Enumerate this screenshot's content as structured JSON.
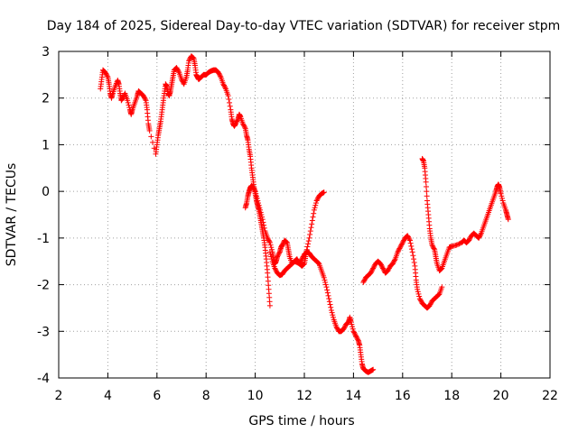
{
  "chart_data": {
    "type": "scatter",
    "title": "Day 184 of 2025, Sidereal Day-to-day VTEC variation (SDTVAR) for receiver stpm",
    "xlabel": "GPS time / hours",
    "ylabel": "SDTVAR / TECUs",
    "xlim": [
      2,
      22
    ],
    "ylim": [
      -4,
      3
    ],
    "xticks": [
      2,
      4,
      6,
      8,
      10,
      12,
      14,
      16,
      18,
      20,
      22
    ],
    "yticks": [
      -4,
      -3,
      -2,
      -1,
      0,
      1,
      2,
      3
    ],
    "grid": true,
    "marker": "plus",
    "color": "#ff0000",
    "segments": [
      {
        "points": [
          [
            3.7,
            2.2
          ],
          [
            3.75,
            2.4
          ],
          [
            3.8,
            2.6
          ],
          [
            3.9,
            2.55
          ],
          [
            4.0,
            2.45
          ],
          [
            4.05,
            2.3
          ],
          [
            4.1,
            2.1
          ],
          [
            4.15,
            2.0
          ],
          [
            4.2,
            2.1
          ],
          [
            4.3,
            2.25
          ],
          [
            4.4,
            2.38
          ],
          [
            4.45,
            2.3
          ],
          [
            4.5,
            2.1
          ],
          [
            4.55,
            1.95
          ],
          [
            4.6,
            2.0
          ],
          [
            4.7,
            2.1
          ],
          [
            4.8,
            1.95
          ],
          [
            4.9,
            1.75
          ],
          [
            4.95,
            1.65
          ],
          [
            5.0,
            1.75
          ],
          [
            5.1,
            1.9
          ],
          [
            5.2,
            2.05
          ],
          [
            5.25,
            2.15
          ],
          [
            5.35,
            2.1
          ],
          [
            5.45,
            2.05
          ],
          [
            5.55,
            1.95
          ],
          [
            5.6,
            1.75
          ],
          [
            5.65,
            1.45
          ],
          [
            5.7,
            1.3
          ],
          [
            5.95,
            0.8
          ],
          [
            6.0,
            1.0
          ],
          [
            6.05,
            1.2
          ],
          [
            6.1,
            1.35
          ],
          [
            6.15,
            1.5
          ],
          [
            6.2,
            1.7
          ],
          [
            6.25,
            1.9
          ],
          [
            6.3,
            2.1
          ],
          [
            6.35,
            2.3
          ],
          [
            6.4,
            2.25
          ],
          [
            6.45,
            2.1
          ],
          [
            6.5,
            2.05
          ],
          [
            6.55,
            2.15
          ],
          [
            6.6,
            2.3
          ],
          [
            6.65,
            2.45
          ],
          [
            6.7,
            2.6
          ],
          [
            6.8,
            2.65
          ],
          [
            6.9,
            2.55
          ],
          [
            7.0,
            2.4
          ],
          [
            7.1,
            2.3
          ],
          [
            7.2,
            2.45
          ],
          [
            7.25,
            2.6
          ],
          [
            7.3,
            2.8
          ],
          [
            7.4,
            2.9
          ],
          [
            7.5,
            2.85
          ],
          [
            7.55,
            2.7
          ],
          [
            7.6,
            2.5
          ],
          [
            7.65,
            2.45
          ],
          [
            7.7,
            2.4
          ],
          [
            7.8,
            2.45
          ],
          [
            7.9,
            2.5
          ],
          [
            8.0,
            2.5
          ],
          [
            8.1,
            2.55
          ],
          [
            8.2,
            2.58
          ],
          [
            8.3,
            2.6
          ],
          [
            8.4,
            2.6
          ],
          [
            8.5,
            2.55
          ],
          [
            8.6,
            2.45
          ],
          [
            8.7,
            2.3
          ],
          [
            8.8,
            2.2
          ],
          [
            8.9,
            2.05
          ],
          [
            9.0,
            1.75
          ],
          [
            9.05,
            1.55
          ],
          [
            9.1,
            1.45
          ],
          [
            9.15,
            1.4
          ],
          [
            9.2,
            1.45
          ],
          [
            9.3,
            1.55
          ],
          [
            9.35,
            1.65
          ],
          [
            9.4,
            1.6
          ],
          [
            9.5,
            1.45
          ],
          [
            9.6,
            1.35
          ],
          [
            9.65,
            1.2
          ],
          [
            9.7,
            1.1
          ],
          [
            9.75,
            0.9
          ],
          [
            9.8,
            0.75
          ],
          [
            9.85,
            0.5
          ],
          [
            9.9,
            0.3
          ],
          [
            9.95,
            0.1
          ],
          [
            10.0,
            -0.05
          ],
          [
            10.05,
            -0.2
          ],
          [
            10.1,
            -0.3
          ],
          [
            10.15,
            -0.4
          ],
          [
            10.2,
            -0.55
          ],
          [
            10.25,
            -0.7
          ],
          [
            10.3,
            -0.85
          ],
          [
            10.35,
            -1.0
          ],
          [
            10.4,
            -1.2
          ],
          [
            10.45,
            -1.45
          ],
          [
            10.5,
            -1.75
          ],
          [
            10.55,
            -2.1
          ],
          [
            10.6,
            -2.45
          ]
        ]
      },
      {
        "points": [
          [
            9.6,
            -0.35
          ],
          [
            9.65,
            -0.25
          ],
          [
            9.7,
            -0.1
          ],
          [
            9.75,
            0.0
          ],
          [
            9.8,
            0.08
          ],
          [
            9.85,
            0.12
          ],
          [
            9.9,
            0.1
          ],
          [
            10.0,
            0.0
          ],
          [
            10.1,
            -0.2
          ],
          [
            10.2,
            -0.4
          ],
          [
            10.3,
            -0.6
          ],
          [
            10.4,
            -0.85
          ],
          [
            10.5,
            -1.0
          ],
          [
            10.6,
            -1.1
          ],
          [
            10.7,
            -1.3
          ],
          [
            10.75,
            -1.45
          ],
          [
            10.8,
            -1.55
          ],
          [
            10.85,
            -1.5
          ],
          [
            10.9,
            -1.4
          ],
          [
            11.0,
            -1.3
          ],
          [
            11.05,
            -1.2
          ],
          [
            11.1,
            -1.15
          ],
          [
            11.2,
            -1.05
          ],
          [
            11.3,
            -1.1
          ],
          [
            11.35,
            -1.25
          ],
          [
            11.4,
            -1.4
          ],
          [
            11.5,
            -1.55
          ],
          [
            11.6,
            -1.5
          ],
          [
            11.7,
            -1.45
          ],
          [
            11.8,
            -1.55
          ],
          [
            11.9,
            -1.6
          ],
          [
            12.0,
            -1.55
          ],
          [
            12.05,
            -1.4
          ],
          [
            12.1,
            -1.25
          ],
          [
            12.2,
            -1.0
          ],
          [
            12.3,
            -0.7
          ],
          [
            12.4,
            -0.4
          ],
          [
            12.5,
            -0.2
          ],
          [
            12.6,
            -0.1
          ],
          [
            12.7,
            -0.05
          ],
          [
            12.8,
            -0.02
          ]
        ]
      },
      {
        "points": [
          [
            10.6,
            -1.3
          ],
          [
            10.7,
            -1.5
          ],
          [
            10.8,
            -1.65
          ],
          [
            10.9,
            -1.75
          ],
          [
            11.0,
            -1.8
          ],
          [
            11.1,
            -1.78
          ],
          [
            11.2,
            -1.7
          ],
          [
            11.3,
            -1.65
          ],
          [
            11.4,
            -1.6
          ],
          [
            11.5,
            -1.55
          ],
          [
            11.6,
            -1.5
          ],
          [
            11.7,
            -1.52
          ],
          [
            11.8,
            -1.55
          ],
          [
            11.9,
            -1.45
          ],
          [
            12.0,
            -1.35
          ],
          [
            12.1,
            -1.3
          ],
          [
            12.2,
            -1.32
          ],
          [
            12.3,
            -1.4
          ],
          [
            12.4,
            -1.45
          ],
          [
            12.5,
            -1.5
          ],
          [
            12.6,
            -1.55
          ],
          [
            12.7,
            -1.7
          ],
          [
            12.8,
            -1.85
          ],
          [
            12.9,
            -2.05
          ],
          [
            13.0,
            -2.3
          ],
          [
            13.1,
            -2.55
          ],
          [
            13.2,
            -2.75
          ],
          [
            13.3,
            -2.9
          ],
          [
            13.4,
            -3.0
          ],
          [
            13.5,
            -3.0
          ],
          [
            13.6,
            -2.95
          ],
          [
            13.7,
            -2.85
          ],
          [
            13.8,
            -2.8
          ],
          [
            13.85,
            -2.7
          ],
          [
            13.9,
            -2.8
          ],
          [
            14.0,
            -3.0
          ],
          [
            14.1,
            -3.1
          ],
          [
            14.2,
            -3.2
          ],
          [
            14.25,
            -3.3
          ],
          [
            14.3,
            -3.5
          ],
          [
            14.35,
            -3.7
          ],
          [
            14.4,
            -3.8
          ],
          [
            14.5,
            -3.85
          ],
          [
            14.6,
            -3.88
          ],
          [
            14.7,
            -3.85
          ],
          [
            14.8,
            -3.82
          ]
        ]
      },
      {
        "points": [
          [
            14.4,
            -1.95
          ],
          [
            14.5,
            -1.85
          ],
          [
            14.6,
            -1.8
          ],
          [
            14.7,
            -1.75
          ],
          [
            14.8,
            -1.65
          ],
          [
            14.9,
            -1.55
          ],
          [
            15.0,
            -1.5
          ],
          [
            15.1,
            -1.55
          ],
          [
            15.2,
            -1.65
          ],
          [
            15.3,
            -1.75
          ],
          [
            15.4,
            -1.7
          ],
          [
            15.5,
            -1.6
          ],
          [
            15.6,
            -1.55
          ],
          [
            15.7,
            -1.45
          ],
          [
            15.8,
            -1.3
          ],
          [
            15.9,
            -1.2
          ],
          [
            16.0,
            -1.1
          ],
          [
            16.1,
            -1.0
          ],
          [
            16.2,
            -0.95
          ],
          [
            16.3,
            -1.05
          ],
          [
            16.4,
            -1.3
          ],
          [
            16.5,
            -1.6
          ],
          [
            16.55,
            -1.9
          ],
          [
            16.6,
            -2.1
          ],
          [
            16.7,
            -2.3
          ],
          [
            16.8,
            -2.4
          ],
          [
            16.9,
            -2.45
          ],
          [
            17.0,
            -2.5
          ],
          [
            17.1,
            -2.45
          ],
          [
            17.2,
            -2.35
          ],
          [
            17.3,
            -2.3
          ],
          [
            17.4,
            -2.25
          ],
          [
            17.5,
            -2.2
          ],
          [
            17.6,
            -2.05
          ]
        ]
      },
      {
        "points": [
          [
            16.8,
            0.7
          ],
          [
            16.85,
            0.65
          ],
          [
            16.9,
            0.5
          ],
          [
            16.95,
            0.2
          ],
          [
            17.0,
            -0.2
          ],
          [
            17.05,
            -0.5
          ],
          [
            17.1,
            -0.8
          ],
          [
            17.15,
            -1.0
          ],
          [
            17.2,
            -1.15
          ],
          [
            17.3,
            -1.25
          ],
          [
            17.35,
            -1.4
          ],
          [
            17.4,
            -1.55
          ],
          [
            17.5,
            -1.7
          ],
          [
            17.6,
            -1.65
          ],
          [
            17.7,
            -1.5
          ],
          [
            17.8,
            -1.35
          ],
          [
            17.9,
            -1.2
          ],
          [
            18.0,
            -1.18
          ],
          [
            18.2,
            -1.15
          ],
          [
            18.4,
            -1.1
          ],
          [
            18.5,
            -1.05
          ],
          [
            18.6,
            -1.1
          ],
          [
            18.7,
            -1.05
          ],
          [
            18.8,
            -0.95
          ],
          [
            18.9,
            -0.9
          ],
          [
            19.0,
            -0.95
          ],
          [
            19.1,
            -1.0
          ],
          [
            19.2,
            -0.9
          ],
          [
            19.3,
            -0.75
          ],
          [
            19.4,
            -0.6
          ],
          [
            19.5,
            -0.45
          ],
          [
            19.6,
            -0.3
          ],
          [
            19.7,
            -0.15
          ],
          [
            19.8,
            0.0
          ],
          [
            19.85,
            0.1
          ],
          [
            19.9,
            0.15
          ],
          [
            19.95,
            0.08
          ],
          [
            20.0,
            -0.05
          ],
          [
            20.1,
            -0.25
          ],
          [
            20.2,
            -0.4
          ],
          [
            20.25,
            -0.5
          ],
          [
            20.3,
            -0.6
          ]
        ]
      }
    ]
  }
}
